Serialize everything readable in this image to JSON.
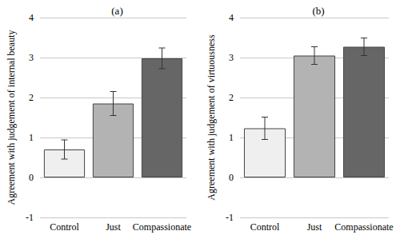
{
  "chart_data": [
    {
      "type": "bar",
      "title": "(a)",
      "y_label": "Agreement with judgement of internal beauty",
      "categories": [
        "Control",
        "Just",
        "Compassionate"
      ],
      "values": [
        0.7,
        1.85,
        2.98
      ],
      "errors": [
        0.24,
        0.3,
        0.26
      ],
      "colors": [
        "#efefef",
        "#b3b3b3",
        "#666666"
      ],
      "ylim": [
        -1,
        4
      ],
      "yticks": [
        -1,
        0,
        1,
        2,
        3,
        4
      ],
      "grid": true
    },
    {
      "type": "bar",
      "title": "(b)",
      "y_label": "Agreement with judgement of virtuousness",
      "categories": [
        "Control",
        "Just",
        "Compassionate"
      ],
      "values": [
        1.23,
        3.05,
        3.27
      ],
      "errors": [
        0.28,
        0.22,
        0.22
      ],
      "colors": [
        "#efefef",
        "#b3b3b3",
        "#666666"
      ],
      "ylim": [
        -1,
        4
      ],
      "yticks": [
        -1,
        0,
        1,
        2,
        3,
        4
      ],
      "grid": true
    }
  ]
}
